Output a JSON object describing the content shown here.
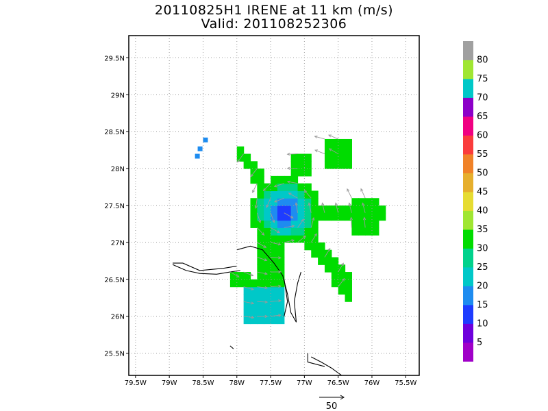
{
  "title": "20110825H1 IRENE at 11 km (m/s)",
  "subtitle": "Valid: 201108252306",
  "map": {
    "lat_ticks": [
      "29.5N",
      "29N",
      "28.5N",
      "28N",
      "27.5N",
      "27N",
      "26.5N",
      "26N",
      "25.5N"
    ],
    "lon_ticks": [
      "79.5W",
      "79W",
      "78.5W",
      "78W",
      "77.5W",
      "77W",
      "76.5W",
      "76W",
      "75.5W"
    ],
    "lat_range": [
      25.2,
      29.8
    ],
    "lon_range": [
      -79.6,
      -75.3
    ],
    "grid": "dotted",
    "storm_center": {
      "lon": -77.28,
      "lat": 27.42
    },
    "reference_vector_label": "50"
  },
  "colorbar": {
    "labels": [
      "5",
      "10",
      "15",
      "20",
      "25",
      "30",
      "35",
      "40",
      "45",
      "50",
      "55",
      "60",
      "65",
      "70",
      "75",
      "80"
    ],
    "colors": [
      "#a000c8",
      "#6e00dc",
      "#1e3cff",
      "#1e8cf0",
      "#00c8c8",
      "#00d28c",
      "#00dc00",
      "#a0e632",
      "#e6dc32",
      "#e6af2d",
      "#f08228",
      "#fa3c3c",
      "#f00082",
      "#8c00c8",
      "#00c8c8",
      "#a0e632",
      "#a0a0a0"
    ]
  }
}
